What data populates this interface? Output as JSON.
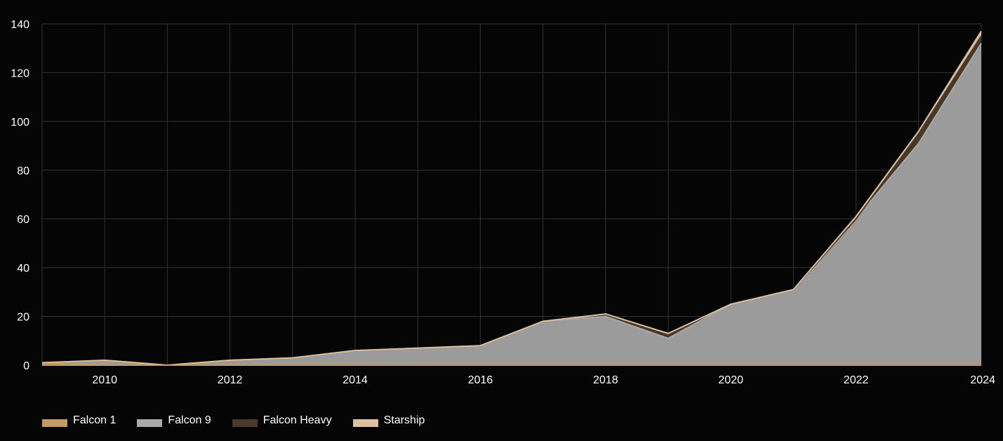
{
  "chart_data": {
    "type": "area",
    "stacked": true,
    "x": [
      2009,
      2010,
      2011,
      2012,
      2013,
      2014,
      2015,
      2016,
      2017,
      2018,
      2019,
      2020,
      2021,
      2022,
      2023,
      2024
    ],
    "series": [
      {
        "name": "Falcon 1",
        "color": "#c49a62",
        "values": [
          1,
          0,
          0,
          0,
          0,
          0,
          0,
          0,
          0,
          0,
          0,
          0,
          0,
          0,
          0,
          0
        ]
      },
      {
        "name": "Falcon 9",
        "color": "#a9a9a9",
        "values": [
          0,
          2,
          0,
          2,
          3,
          6,
          7,
          8,
          18,
          20,
          11,
          25,
          31,
          60,
          91,
          132
        ]
      },
      {
        "name": "Falcon Heavy",
        "color": "#4a3a28",
        "values": [
          0,
          0,
          0,
          0,
          0,
          0,
          0,
          0,
          0,
          1,
          2,
          0,
          0,
          0,
          4,
          3
        ]
      },
      {
        "name": "Starship",
        "color": "#dcc0a0",
        "values": [
          0,
          0,
          0,
          0,
          0,
          0,
          0,
          0,
          0,
          0,
          0,
          0,
          0,
          1,
          1,
          2
        ]
      }
    ],
    "xticks": [
      "2010",
      "2012",
      "2014",
      "2016",
      "2018",
      "2020",
      "2022",
      "2024"
    ],
    "yticks": [
      "0",
      "20",
      "40",
      "60",
      "80",
      "100",
      "120",
      "140"
    ],
    "xlim": [
      2009,
      2024
    ],
    "ylim": [
      0,
      140
    ],
    "grid": true,
    "legend_position": "bottom-left",
    "title": "",
    "xlabel": "",
    "ylabel": ""
  }
}
